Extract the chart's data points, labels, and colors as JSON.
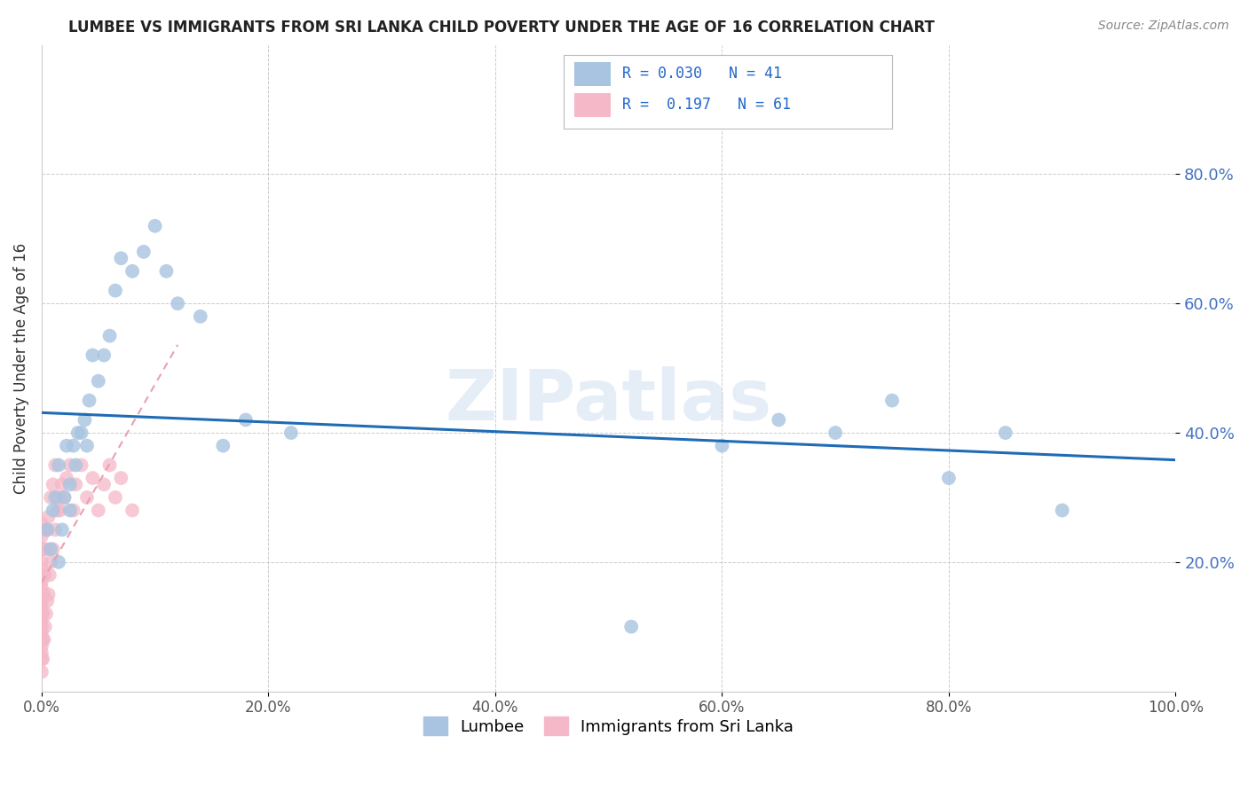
{
  "title": "LUMBEE VS IMMIGRANTS FROM SRI LANKA CHILD POVERTY UNDER THE AGE OF 16 CORRELATION CHART",
  "source": "Source: ZipAtlas.com",
  "ylabel": "Child Poverty Under the Age of 16",
  "xlim": [
    0,
    1.0
  ],
  "ylim": [
    0,
    1.0
  ],
  "xticks": [
    0.0,
    0.2,
    0.4,
    0.6,
    0.8,
    1.0
  ],
  "yticks": [
    0.2,
    0.4,
    0.6,
    0.8
  ],
  "watermark": "ZIPatlas",
  "lumbee_color": "#a8c4e0",
  "srilanka_color": "#f4b8c8",
  "trendline_blue": "#1f6bb5",
  "trendline_pink": "#e8a0b0",
  "lumbee_R": 0.03,
  "lumbee_N": 41,
  "srilanka_R": 0.197,
  "srilanka_N": 61,
  "lumbee_x": [
    0.005,
    0.008,
    0.01,
    0.012,
    0.015,
    0.015,
    0.018,
    0.02,
    0.022,
    0.025,
    0.025,
    0.028,
    0.03,
    0.032,
    0.035,
    0.038,
    0.04,
    0.042,
    0.045,
    0.05,
    0.055,
    0.06,
    0.065,
    0.07,
    0.08,
    0.09,
    0.1,
    0.11,
    0.12,
    0.14,
    0.16,
    0.18,
    0.22,
    0.52,
    0.6,
    0.65,
    0.7,
    0.75,
    0.8,
    0.85,
    0.9
  ],
  "lumbee_y": [
    0.25,
    0.22,
    0.28,
    0.3,
    0.2,
    0.35,
    0.25,
    0.3,
    0.38,
    0.28,
    0.32,
    0.38,
    0.35,
    0.4,
    0.4,
    0.42,
    0.38,
    0.45,
    0.52,
    0.48,
    0.52,
    0.55,
    0.62,
    0.67,
    0.65,
    0.68,
    0.72,
    0.65,
    0.6,
    0.58,
    0.38,
    0.42,
    0.4,
    0.1,
    0.38,
    0.42,
    0.4,
    0.45,
    0.33,
    0.4,
    0.28
  ],
  "srilanka_x": [
    0.0,
    0.0,
    0.0,
    0.0,
    0.0,
    0.0,
    0.0,
    0.0,
    0.0,
    0.0,
    0.0,
    0.0,
    0.0,
    0.0,
    0.0,
    0.0,
    0.0,
    0.0,
    0.0,
    0.0,
    0.001,
    0.001,
    0.001,
    0.001,
    0.001,
    0.002,
    0.002,
    0.002,
    0.003,
    0.003,
    0.004,
    0.004,
    0.005,
    0.005,
    0.006,
    0.006,
    0.007,
    0.008,
    0.008,
    0.01,
    0.01,
    0.012,
    0.012,
    0.014,
    0.015,
    0.016,
    0.018,
    0.02,
    0.022,
    0.025,
    0.028,
    0.03,
    0.035,
    0.04,
    0.045,
    0.05,
    0.055,
    0.06,
    0.065,
    0.07,
    0.08
  ],
  "srilanka_y": [
    0.03,
    0.05,
    0.06,
    0.07,
    0.08,
    0.09,
    0.1,
    0.11,
    0.12,
    0.13,
    0.14,
    0.15,
    0.16,
    0.17,
    0.18,
    0.19,
    0.2,
    0.22,
    0.24,
    0.26,
    0.05,
    0.08,
    0.12,
    0.18,
    0.25,
    0.08,
    0.15,
    0.22,
    0.1,
    0.18,
    0.12,
    0.22,
    0.14,
    0.25,
    0.15,
    0.27,
    0.18,
    0.2,
    0.3,
    0.22,
    0.32,
    0.25,
    0.35,
    0.28,
    0.3,
    0.28,
    0.32,
    0.3,
    0.33,
    0.35,
    0.28,
    0.32,
    0.35,
    0.3,
    0.33,
    0.28,
    0.32,
    0.35,
    0.3,
    0.33,
    0.28
  ]
}
